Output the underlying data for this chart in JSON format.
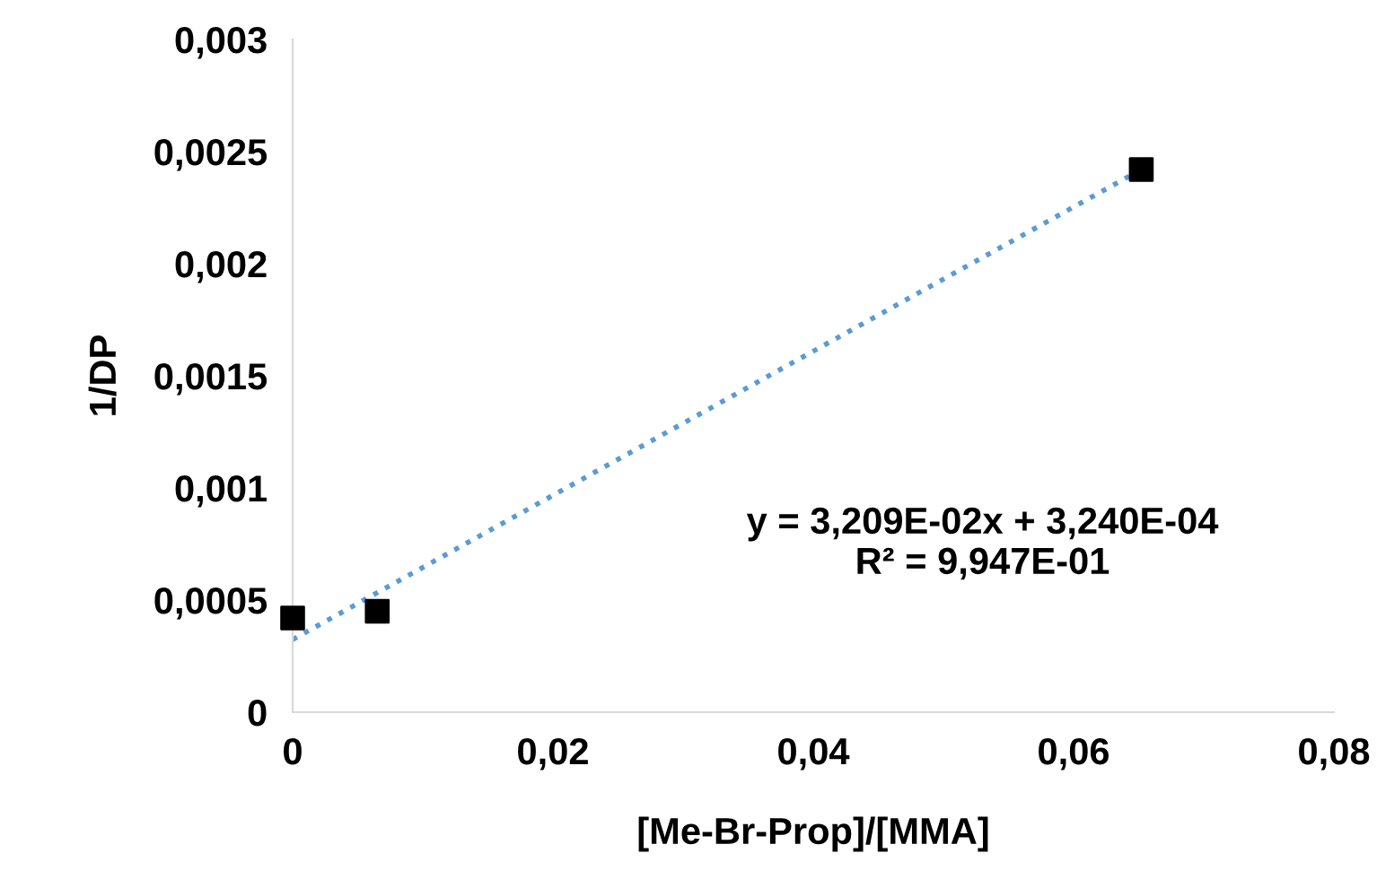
{
  "chart_data": {
    "type": "scatter",
    "xlabel": "[Me-Br-Prop]/[MMA]",
    "ylabel": "1/DP",
    "series": [
      {
        "color": "#000000",
        "marker": "square",
        "x": [
          0,
          0.0065,
          0.0652
        ],
        "values": [
          0.00042,
          0.00045,
          0.00242
        ]
      },
      {
        "type": "line",
        "color": "#5b9bd5",
        "line_style": "dotted",
        "marker": "none",
        "x": [
          0,
          0.0652
        ],
        "values": [
          0.000324,
          0.00242
        ]
      }
    ],
    "annotations": [
      "y = 3,209E-02x + 3,240E-04\nR² = 9,947E-01"
    ],
    "xlim": [
      0,
      0.08
    ],
    "xticks": [
      {
        "value": 0,
        "label": "0"
      },
      {
        "value": 0.02,
        "label": "0,02"
      },
      {
        "value": 0.04,
        "label": "0,04"
      },
      {
        "value": 0.06,
        "label": "0,06"
      },
      {
        "value": 0.08,
        "label": "0,08"
      }
    ],
    "ylim": [
      0,
      0.003
    ],
    "yticks": [
      {
        "value": 0,
        "label": "0"
      },
      {
        "value": 0.0005,
        "label": "0,0005"
      },
      {
        "value": 0.001,
        "label": "0,001"
      },
      {
        "value": 0.0015,
        "label": "0,0015"
      },
      {
        "value": 0.002,
        "label": "0,002"
      },
      {
        "value": 0.0025,
        "label": "0,0025"
      },
      {
        "value": 0.003,
        "label": "0,003"
      }
    ],
    "grid": false,
    "legend": false
  }
}
